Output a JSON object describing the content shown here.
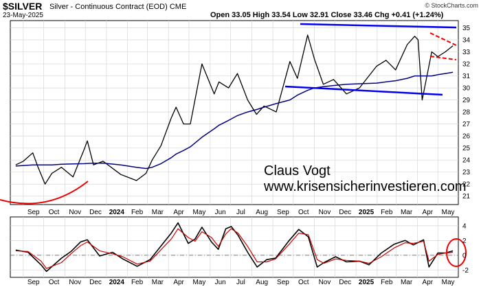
{
  "header": {
    "symbol": "$SILVER",
    "subtitle": "Silver - Continuous Contract (EOD) CME",
    "date": "23-May-2025",
    "ohlc": "Open 33.05 High 33.54 Low 32.91 Close 33.46 Chg +0.41 (+1.24%)",
    "copyright": "© StockCharts.com"
  },
  "annotations": {
    "author": "Claus Vogt",
    "website": "www.krisensicherinvestieren.com"
  },
  "colors": {
    "price": "#000000",
    "moving_average": "#000080",
    "signal": "#cc0000",
    "trendline": "#0000ee",
    "marker": "#ee0000"
  },
  "chart_data": [
    {
      "type": "line",
      "panel": "price",
      "ylim": [
        20.3,
        35.6
      ],
      "y_ticks": [
        21,
        22,
        23,
        24,
        25,
        26,
        27,
        28,
        29,
        30,
        31,
        32,
        33,
        34,
        35
      ],
      "x_ticks": [
        "Sep",
        "Oct",
        "Nov",
        "Dec",
        "2024",
        "Feb",
        "Mar",
        "Apr",
        "May",
        "Jun",
        "Jul",
        "Aug",
        "Sep",
        "Oct",
        "Nov",
        "Dec",
        "2025",
        "Feb",
        "Mar",
        "Apr",
        "May"
      ],
      "bold_ticks": [
        "2024",
        "2025"
      ],
      "x": [
        "2023-08-21",
        "2023-09-01",
        "2023-09-15",
        "2023-09-22",
        "2023-10-03",
        "2023-10-13",
        "2023-10-27",
        "2023-11-13",
        "2023-11-30",
        "2023-12-04",
        "2023-12-13",
        "2023-12-27",
        "2024-01-22",
        "2024-02-14",
        "2024-02-28",
        "2024-03-08",
        "2024-03-21",
        "2024-04-05",
        "2024-04-12",
        "2024-04-23",
        "2024-05-03",
        "2024-05-20",
        "2024-06-07",
        "2024-06-14",
        "2024-06-28",
        "2024-07-11",
        "2024-07-26",
        "2024-08-08",
        "2024-08-19",
        "2024-09-06",
        "2024-09-26",
        "2024-10-07",
        "2024-10-22",
        "2024-11-01",
        "2024-11-14",
        "2024-11-29",
        "2024-12-18",
        "2025-01-06",
        "2025-01-31",
        "2025-02-14",
        "2025-02-28",
        "2025-03-17",
        "2025-03-28",
        "2025-04-02",
        "2025-04-08",
        "2025-04-22",
        "2025-05-01",
        "2025-05-12",
        "2025-05-23"
      ],
      "series": [
        {
          "values": [
            23.6,
            23.9,
            24.6,
            23.5,
            22.0,
            22.9,
            23.4,
            22.6,
            25.0,
            25.6,
            23.6,
            23.9,
            22.8,
            22.3,
            22.9,
            24.0,
            25.2,
            27.5,
            28.4,
            27.0,
            27.0,
            32.0,
            29.5,
            30.5,
            30.0,
            31.2,
            29.0,
            27.8,
            28.5,
            28.0,
            32.2,
            30.8,
            34.4,
            32.4,
            30.3,
            30.7,
            29.5,
            30.0,
            31.8,
            32.3,
            31.5,
            33.6,
            34.3,
            34.0,
            29.0,
            33.0,
            32.6,
            33.0,
            33.5
          ]
        },
        {
          "values": [
            23.5,
            23.55,
            23.6,
            23.6,
            23.6,
            23.6,
            23.65,
            23.68,
            23.7,
            23.72,
            23.74,
            23.75,
            23.6,
            23.4,
            23.3,
            23.4,
            23.7,
            24.2,
            24.5,
            24.8,
            25.1,
            25.9,
            26.6,
            26.9,
            27.3,
            27.7,
            28.0,
            28.2,
            28.4,
            28.7,
            29.0,
            29.4,
            29.8,
            30.0,
            30.1,
            30.2,
            30.3,
            30.35,
            30.4,
            30.5,
            30.6,
            30.8,
            31.0,
            31.0,
            31.0,
            31.0,
            31.1,
            31.2,
            31.3
          ]
        }
      ]
    },
    {
      "type": "line",
      "panel": "oscillator",
      "ylim": [
        -3,
        5.2
      ],
      "y_ticks": [
        -2,
        0,
        2,
        4
      ],
      "x_ticks": [
        "Sep",
        "Oct",
        "Nov",
        "Dec",
        "2024",
        "Feb",
        "Mar",
        "Apr",
        "May",
        "Jun",
        "Jul",
        "Aug",
        "Sep",
        "Oct",
        "Nov",
        "Dec",
        "2025",
        "Feb",
        "Mar",
        "Apr",
        "May"
      ],
      "bold_ticks": [
        "2024",
        "2025"
      ],
      "x": [
        "2023-08-21",
        "2023-09-08",
        "2023-09-27",
        "2023-10-05",
        "2023-10-27",
        "2023-11-10",
        "2023-11-24",
        "2023-12-04",
        "2023-12-22",
        "2024-01-10",
        "2024-01-25",
        "2024-02-15",
        "2024-03-05",
        "2024-04-05",
        "2024-04-15",
        "2024-04-30",
        "2024-05-10",
        "2024-05-20",
        "2024-06-03",
        "2024-06-13",
        "2024-06-24",
        "2024-07-02",
        "2024-07-12",
        "2024-07-26",
        "2024-08-09",
        "2024-08-23",
        "2024-09-05",
        "2024-09-25",
        "2024-10-09",
        "2024-10-23",
        "2024-11-05",
        "2024-11-15",
        "2024-12-02",
        "2024-12-18",
        "2025-01-06",
        "2025-01-20",
        "2025-02-07",
        "2025-02-26",
        "2025-03-14",
        "2025-03-26",
        "2025-04-10",
        "2025-04-18",
        "2025-05-01",
        "2025-05-12",
        "2025-05-23"
      ],
      "series": [
        {
          "values": [
            0.7,
            0.4,
            -1.3,
            -2.2,
            -0.4,
            0.5,
            1.8,
            2.1,
            -0.1,
            0.4,
            -0.5,
            -1.5,
            -0.6,
            3.0,
            4.4,
            1.6,
            2.2,
            3.8,
            1.8,
            0.8,
            3.6,
            3.9,
            2.7,
            0.4,
            -1.6,
            -0.6,
            -0.4,
            2.0,
            3.5,
            2.5,
            -1.6,
            -1.0,
            -0.2,
            -0.9,
            -0.8,
            -1.3,
            0.3,
            1.5,
            2.0,
            1.4,
            2.1,
            -1.6,
            0.3,
            0.3,
            0.6
          ]
        },
        {
          "values": [
            0.6,
            0.5,
            -0.8,
            -1.8,
            -1.0,
            0.2,
            1.3,
            1.8,
            0.6,
            0.2,
            -0.2,
            -1.2,
            -0.8,
            2.2,
            3.6,
            2.4,
            1.9,
            3.2,
            2.4,
            1.2,
            2.9,
            3.6,
            3.0,
            1.2,
            -0.9,
            -0.9,
            -0.5,
            1.5,
            3.0,
            2.8,
            -0.6,
            -1.1,
            -0.5,
            -0.7,
            -0.8,
            -1.1,
            -0.2,
            1.0,
            1.7,
            1.6,
            1.9,
            -0.8,
            0.1,
            0.3,
            0.4
          ]
        }
      ]
    }
  ]
}
